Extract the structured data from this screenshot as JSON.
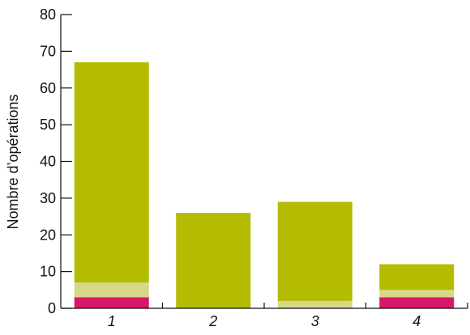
{
  "chart_data": {
    "type": "bar",
    "stacked": true,
    "categories": [
      "1",
      "2",
      "3",
      "4"
    ],
    "series": [
      {
        "color": "#d9176c",
        "values": [
          3,
          0,
          0,
          3
        ]
      },
      {
        "color": "#d6d88a",
        "values": [
          4,
          0,
          2,
          2
        ]
      },
      {
        "color": "#b3bc00",
        "values": [
          60,
          26,
          27,
          7
        ]
      }
    ],
    "totals": [
      67,
      26,
      29,
      12
    ],
    "xlabel": "",
    "ylabel": "Nombre d’opérations",
    "ylim": [
      0,
      80
    ],
    "yticks": [
      0,
      10,
      20,
      30,
      40,
      50,
      60,
      70,
      80
    ],
    "grid": false,
    "legend": "none"
  }
}
